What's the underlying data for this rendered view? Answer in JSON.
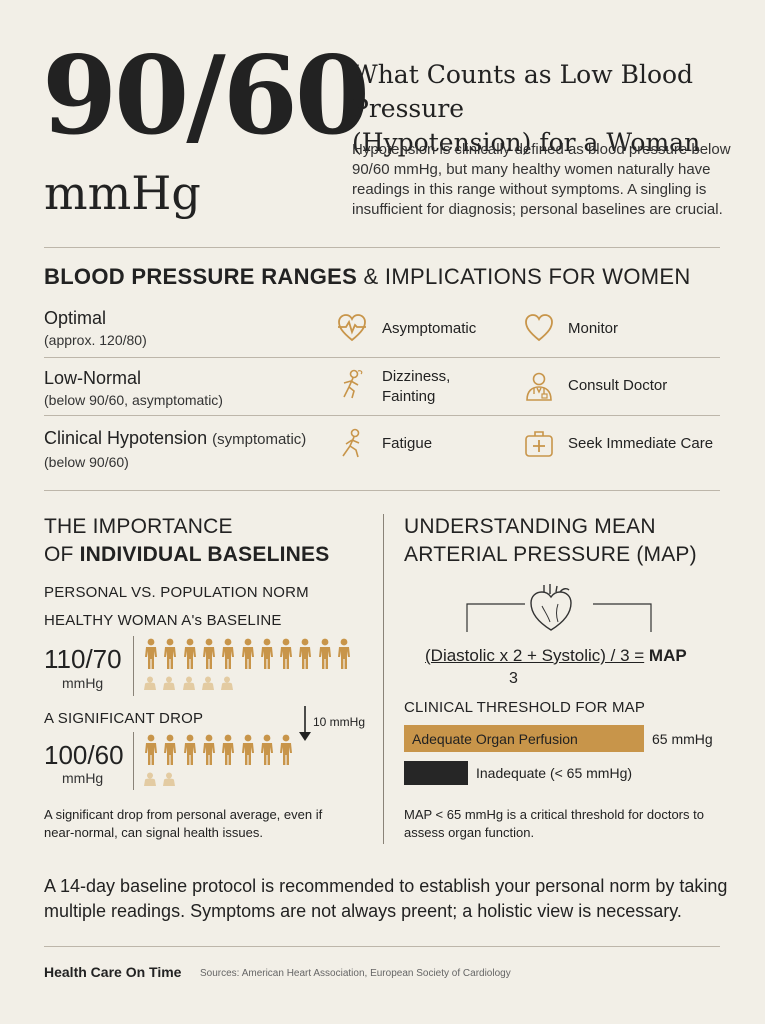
{
  "hero": {
    "value": "90/60",
    "unit": "mmHg",
    "title_line1": "What Counts as Low Blood Pressure",
    "title_line2": "(Hypotension) for a Woman",
    "intro": "Hypotension is clinically defined as blood pressure below 90/60 mmHg, but many healthy women naturally have readings in this range without symptoms. A singling is insufficient for diagnosis; personal baselines are crucial."
  },
  "ranges": {
    "title_bold": "BLOOD PRESSURE RANGES",
    "title_rest": "& IMPLICATIONS FOR WOMEN",
    "rows": [
      {
        "label": "Optimal",
        "label_suffix": "",
        "sub": "(approx. 120/80)",
        "effect_icon": "heartbeat-icon",
        "effect": "Asymptomatic",
        "action_icon": "heart-icon",
        "action": "Monitor"
      },
      {
        "label": "Low-Normal",
        "label_suffix": "",
        "sub": "(below 90/60, asymptomatic)",
        "effect_icon": "dizzy-person-icon",
        "effect": "Dizziness, Fainting",
        "action_icon": "doctor-icon",
        "action": "Consult Doctor"
      },
      {
        "label": "Clinical Hypotension",
        "label_suffix": "(symptomatic)",
        "sub": "(below 90/60)",
        "effect_icon": "tired-person-icon",
        "effect": "Fatigue",
        "action_icon": "medical-kit-icon",
        "action": "Seek Immediate Care"
      }
    ]
  },
  "baselines": {
    "heading_line1": "THE IMPORTANCE",
    "heading_line2_pre": "OF",
    "heading_line2_bold": "INDIVIDUAL BASELINES",
    "sub1": "PERSONAL VS. POPULATION NORM",
    "sub2": "HEALTHY WOMAN A's BASELINE",
    "reading1": "110/70",
    "unit": "mmHg",
    "drop_label": "A SIGNIFICANT DROP",
    "drop_amount": "10 mmHg",
    "reading2": "100/60",
    "note": "A significant drop from personal average, even if near-normal, can signal health issues."
  },
  "map": {
    "heading_line1": "UNDERSTANDING MEAN",
    "heading_line2": "ARTERIAL PRESSURE (MAP)",
    "formula_numerator": "(Diastolic x 2 + Systolic) / 3 =",
    "formula_result": "MAP",
    "formula_denominator": "3",
    "threshold_title": "CLINICAL THRESHOLD FOR MAP",
    "good_label": "Adequate Organ Perfusion",
    "good_value": "65 mmHg",
    "bad_label": "Inadequate (< 65 mmHg)",
    "note": "MAP < 65 mmHg is a critical threshold for doctors to assess organ function."
  },
  "bottom_text": "A 14-day baseline protocol is recommended to establish your personal norm by taking multiple readings. Symptoms are not always preent; a holistic view is necessary.",
  "footer": {
    "brand": "Health Care On Time",
    "sources": "Sources: American Heart Association, European Society of Cardiology"
  },
  "colors": {
    "accent": "#c8954a",
    "accent_light": "#e3cba2",
    "dark": "#262626",
    "background": "#f2efe7"
  }
}
